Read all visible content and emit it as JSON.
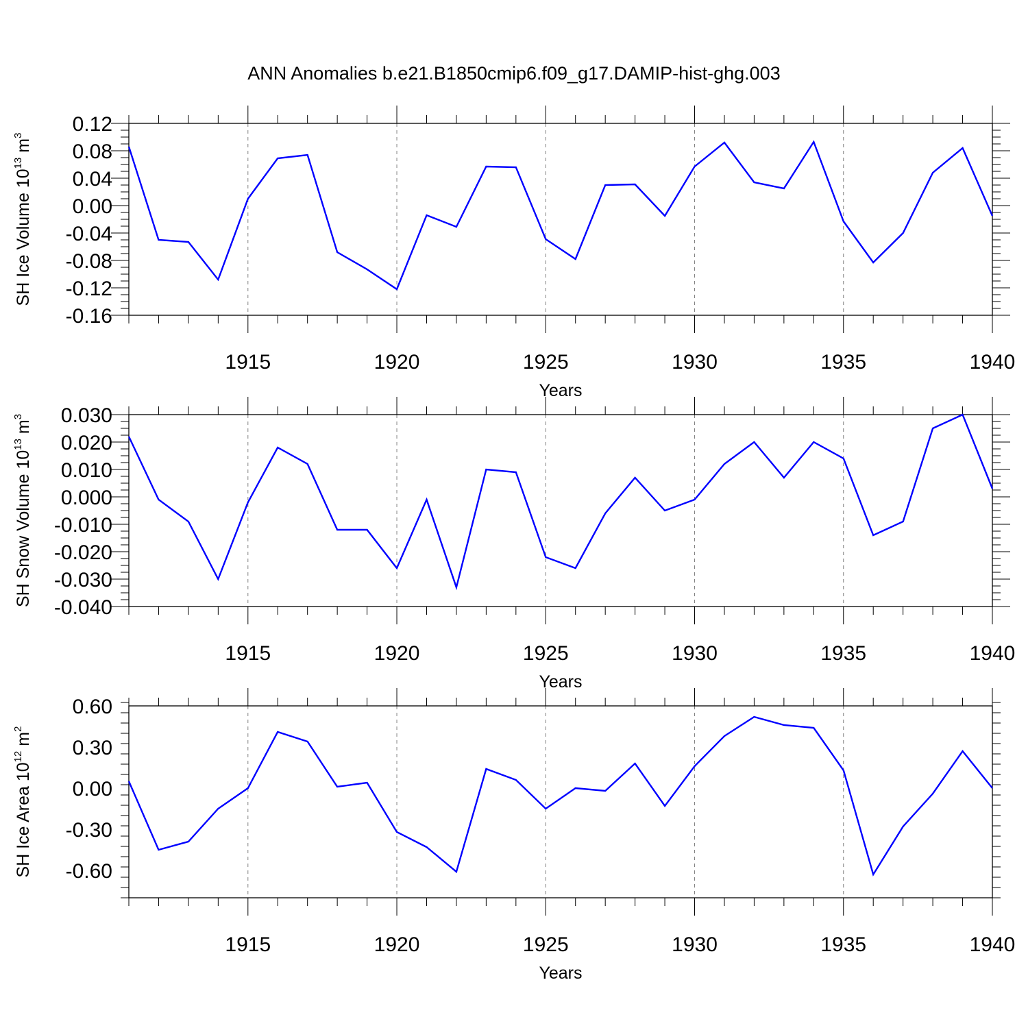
{
  "title": "ANN Anomalies b.e21.B1850cmip6.f09_g17.DAMIP-hist-ghg.003",
  "colors": {
    "line": "#0000ff",
    "frame": "#000000",
    "gridline": "#808080"
  },
  "chart_data": [
    {
      "type": "line",
      "ylabel_main": "SH Ice Volume 10",
      "ylabel_exp": "13",
      "ylabel_unit": " m",
      "ylabel_unit_exp": "3",
      "xlabel": "Years",
      "xlim": [
        1911,
        1940
      ],
      "ylim": [
        -0.16,
        0.12
      ],
      "yticks": [
        0.12,
        0.08,
        0.04,
        0.0,
        -0.04,
        -0.08,
        -0.12,
        -0.16
      ],
      "ytick_labels": [
        "0.12",
        "0.08",
        "0.04",
        "0.00",
        "-0.04",
        "-0.08",
        "-0.12",
        "-0.16"
      ],
      "xticks": [
        1915,
        1920,
        1925,
        1930,
        1935,
        1940
      ],
      "xtick_labels": [
        "1915",
        "1920",
        "1925",
        "1930",
        "1935",
        "1940"
      ],
      "x": [
        1911,
        1912,
        1913,
        1914,
        1915,
        1916,
        1917,
        1918,
        1919,
        1920,
        1921,
        1922,
        1923,
        1924,
        1925,
        1926,
        1927,
        1928,
        1929,
        1930,
        1931,
        1932,
        1933,
        1934,
        1935,
        1936,
        1937,
        1938,
        1939,
        1940
      ],
      "values": [
        0.086,
        -0.05,
        -0.053,
        -0.108,
        0.01,
        0.069,
        0.074,
        -0.068,
        -0.093,
        -0.122,
        -0.014,
        -0.031,
        0.057,
        0.056,
        -0.049,
        -0.078,
        0.03,
        0.031,
        -0.015,
        0.057,
        0.092,
        0.034,
        0.025,
        0.093,
        -0.023,
        -0.083,
        -0.04,
        0.048,
        0.084,
        -0.015
      ],
      "grid": "dashed vertical at major x ticks"
    },
    {
      "type": "line",
      "ylabel_main": "SH Snow Volume 10",
      "ylabel_exp": "13",
      "ylabel_unit": " m",
      "ylabel_unit_exp": "3",
      "xlabel": "Years",
      "xlim": [
        1911,
        1940
      ],
      "ylim": [
        -0.04,
        0.03
      ],
      "yticks": [
        0.03,
        0.02,
        0.01,
        0.0,
        -0.01,
        -0.02,
        -0.03,
        -0.04
      ],
      "ytick_labels": [
        "0.030",
        "0.020",
        "0.010",
        "0.000",
        "-0.010",
        "-0.020",
        "-0.030",
        "-0.040"
      ],
      "xticks": [
        1915,
        1920,
        1925,
        1930,
        1935,
        1940
      ],
      "xtick_labels": [
        "1915",
        "1920",
        "1925",
        "1930",
        "1935",
        "1940"
      ],
      "x": [
        1911,
        1912,
        1913,
        1914,
        1915,
        1916,
        1917,
        1918,
        1919,
        1920,
        1921,
        1922,
        1923,
        1924,
        1925,
        1926,
        1927,
        1928,
        1929,
        1930,
        1931,
        1932,
        1933,
        1934,
        1935,
        1936,
        1937,
        1938,
        1939,
        1940
      ],
      "values": [
        0.022,
        -0.001,
        -0.009,
        -0.03,
        -0.002,
        0.018,
        0.012,
        -0.012,
        -0.012,
        -0.026,
        -0.001,
        -0.033,
        0.01,
        0.009,
        -0.022,
        -0.026,
        -0.006,
        0.007,
        -0.005,
        -0.001,
        0.012,
        0.02,
        0.007,
        0.02,
        0.014,
        -0.014,
        -0.009,
        0.025,
        0.03,
        0.003
      ],
      "grid": "dashed vertical at major x ticks"
    },
    {
      "type": "line",
      "ylabel_main": "SH Ice Area 10",
      "ylabel_exp": "12",
      "ylabel_unit": " m",
      "ylabel_unit_exp": "2",
      "xlabel": "Years",
      "xlim": [
        1911,
        1940
      ],
      "ylim": [
        -0.8,
        0.6
      ],
      "yticks": [
        0.6,
        0.3,
        0.0,
        -0.3,
        -0.6
      ],
      "ytick_labels": [
        "0.60",
        "0.30",
        "0.00",
        "-0.30",
        "-0.60"
      ],
      "xticks": [
        1915,
        1920,
        1925,
        1930,
        1935,
        1940
      ],
      "xtick_labels": [
        "1915",
        "1920",
        "1925",
        "1930",
        "1935",
        "1940"
      ],
      "x": [
        1911,
        1912,
        1913,
        1914,
        1915,
        1916,
        1917,
        1918,
        1919,
        1920,
        1921,
        1922,
        1923,
        1924,
        1925,
        1926,
        1927,
        1928,
        1929,
        1930,
        1931,
        1932,
        1933,
        1934,
        1935,
        1936,
        1937,
        1938,
        1939,
        1940
      ],
      "values": [
        0.05,
        -0.45,
        -0.39,
        -0.15,
        0.0,
        0.41,
        0.34,
        0.01,
        0.04,
        -0.32,
        -0.43,
        -0.61,
        0.14,
        0.06,
        -0.15,
        0.0,
        -0.02,
        0.18,
        -0.13,
        0.16,
        0.38,
        0.52,
        0.46,
        0.44,
        0.13,
        -0.63,
        -0.28,
        -0.04,
        0.27,
        0.0
      ],
      "grid": "dashed vertical at major x ticks"
    }
  ]
}
